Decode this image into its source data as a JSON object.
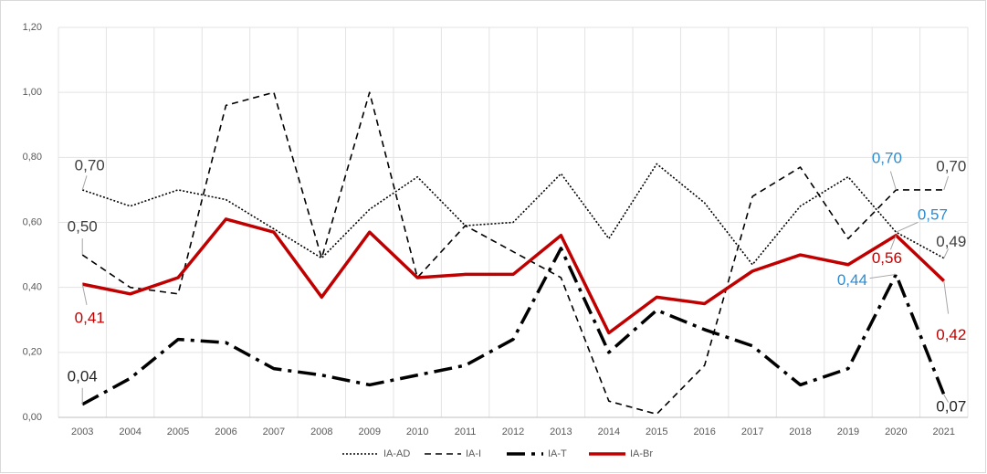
{
  "chart_data": {
    "type": "line",
    "categories": [
      "2003",
      "2004",
      "2005",
      "2006",
      "2007",
      "2008",
      "2009",
      "2010",
      "2011",
      "2012",
      "2013",
      "2014",
      "2015",
      "2016",
      "2017",
      "2018",
      "2019",
      "2020",
      "2021"
    ],
    "ylim": [
      0,
      1.2
    ],
    "yticks": [
      {
        "value": 0,
        "label": "0,00"
      },
      {
        "value": 0.2,
        "label": "0,20"
      },
      {
        "value": 0.4,
        "label": "0,40"
      },
      {
        "value": 0.6,
        "label": "0,60"
      },
      {
        "value": 0.8,
        "label": "0,80"
      },
      {
        "value": 1.0,
        "label": "1,00"
      },
      {
        "value": 1.2,
        "label": "1,20"
      }
    ],
    "grid": true,
    "legend": "bottom",
    "series": [
      {
        "name": "IA-AD",
        "color": "#000000",
        "dash": "dotted",
        "values": [
          0.7,
          0.65,
          0.7,
          0.67,
          0.58,
          0.49,
          0.64,
          0.74,
          0.59,
          0.6,
          0.75,
          0.55,
          0.78,
          0.66,
          0.47,
          0.65,
          0.74,
          0.57,
          0.49
        ],
        "value_labels": [
          "0,70",
          null,
          null,
          null,
          null,
          null,
          null,
          null,
          null,
          null,
          null,
          null,
          null,
          null,
          null,
          null,
          null,
          "0,57",
          "0,49"
        ],
        "value_label_colors": [
          "#404040",
          null,
          null,
          null,
          null,
          null,
          null,
          null,
          null,
          null,
          null,
          null,
          null,
          null,
          null,
          null,
          null,
          "#2e8bd0",
          "#404040"
        ]
      },
      {
        "name": "IA-I",
        "color": "#000000",
        "dash": "dashed",
        "values": [
          0.5,
          0.4,
          0.38,
          0.96,
          1.0,
          0.49,
          1.0,
          0.43,
          0.59,
          0.51,
          0.43,
          0.05,
          0.01,
          0.16,
          0.68,
          0.77,
          0.55,
          0.7,
          0.7
        ],
        "value_labels": [
          "0,50",
          null,
          null,
          null,
          null,
          null,
          null,
          null,
          null,
          null,
          null,
          null,
          null,
          null,
          null,
          null,
          null,
          "0,70",
          "0,70"
        ],
        "value_label_colors": [
          "#404040",
          null,
          null,
          null,
          null,
          null,
          null,
          null,
          null,
          null,
          null,
          null,
          null,
          null,
          null,
          null,
          null,
          "#2e8bd0",
          "#404040"
        ]
      },
      {
        "name": "IA-T",
        "color": "#000000",
        "dash": "dashdot",
        "values": [
          0.04,
          0.12,
          0.24,
          0.23,
          0.15,
          0.13,
          0.1,
          0.13,
          0.16,
          0.24,
          0.52,
          0.2,
          0.33,
          0.27,
          0.22,
          0.1,
          0.15,
          0.44,
          0.07
        ],
        "value_labels": [
          "0,04",
          null,
          null,
          null,
          null,
          null,
          null,
          null,
          null,
          null,
          null,
          null,
          null,
          null,
          null,
          null,
          null,
          "0,44",
          "0,07"
        ],
        "value_label_colors": [
          "#262626",
          null,
          null,
          null,
          null,
          null,
          null,
          null,
          null,
          null,
          null,
          null,
          null,
          null,
          null,
          null,
          null,
          "#2e8bd0",
          "#262626"
        ]
      },
      {
        "name": "IA-Br",
        "color": "#c00000",
        "dash": "solid",
        "values": [
          0.41,
          0.38,
          0.43,
          0.61,
          0.57,
          0.37,
          0.57,
          0.43,
          0.44,
          0.44,
          0.56,
          0.26,
          0.37,
          0.35,
          0.45,
          0.5,
          0.47,
          0.56,
          0.42
        ],
        "value_labels": [
          "0,41",
          null,
          null,
          null,
          null,
          null,
          null,
          null,
          null,
          null,
          null,
          null,
          null,
          null,
          null,
          null,
          null,
          "0,56",
          "0,42"
        ],
        "value_label_colors": [
          "#c00000",
          null,
          null,
          null,
          null,
          null,
          null,
          null,
          null,
          null,
          null,
          null,
          null,
          null,
          null,
          null,
          null,
          "#c00000",
          "#c00000"
        ]
      }
    ]
  }
}
